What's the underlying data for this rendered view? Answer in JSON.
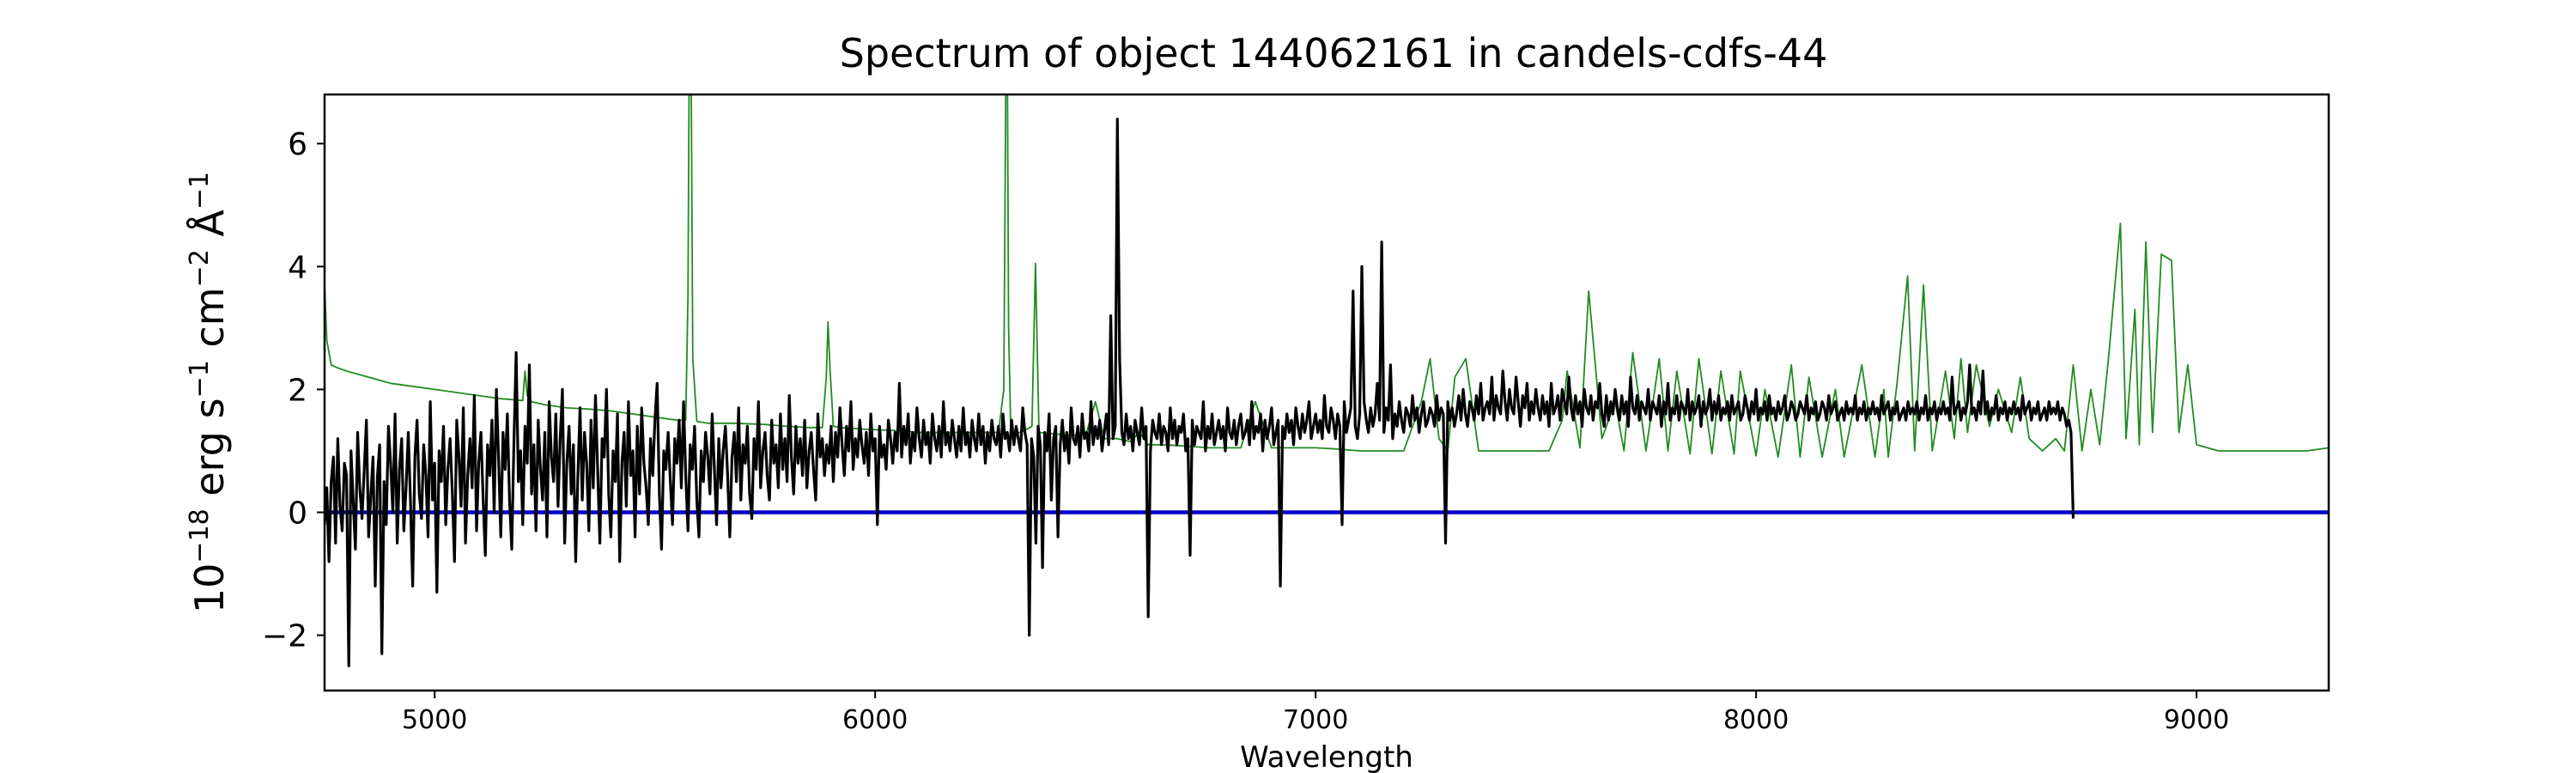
{
  "chart_data": {
    "type": "line",
    "title": "Spectrum of object 144062161 in candels-cdfs-44",
    "xlabel": "Wavelength",
    "ylabel": {
      "base": "10",
      "exp1": "−18",
      "erg": " erg s",
      "exp2": "−1",
      "cm": " cm",
      "exp3": "−2",
      "ang": " Å",
      "exp4": "−1"
    },
    "xlim": [
      4750,
      9300
    ],
    "ylim": [
      -2.9,
      6.8
    ],
    "xticks": [
      5000,
      6000,
      7000,
      8000,
      9000
    ],
    "xtick_labels": [
      "5000",
      "6000",
      "7000",
      "8000",
      "9000"
    ],
    "yticks": [
      -2,
      0,
      2,
      4,
      6
    ],
    "ytick_labels": [
      "−2",
      "0",
      "2",
      "4",
      "6"
    ],
    "grid": false,
    "legend": "none",
    "series": [
      {
        "role": "sky",
        "color": "#228B22",
        "x": [
          4750,
          4755,
          4765,
          4780,
          4800,
          4850,
          4900,
          4950,
          5000,
          5050,
          5100,
          5150,
          5200,
          5205,
          5210,
          5220,
          5250,
          5300,
          5350,
          5400,
          5450,
          5500,
          5550,
          5570,
          5575,
          5578,
          5582,
          5586,
          5595,
          5620,
          5680,
          5750,
          5800,
          5850,
          5880,
          5889,
          5893,
          5897,
          5905,
          5920,
          5980,
          6050,
          6100,
          6150,
          6200,
          6280,
          6292,
          6297,
          6300,
          6303,
          6308,
          6330,
          6356,
          6364,
          6372,
          6400,
          6450,
          6480,
          6500,
          6520,
          6550,
          6580,
          6600,
          6620,
          6650,
          6700,
          6760,
          6830,
          6863,
          6900,
          6950,
          7000,
          7050,
          7100,
          7150,
          7200,
          7240,
          7260,
          7280,
          7300,
          7316,
          7341,
          7370,
          7400,
          7450,
          7500,
          7530,
          7560,
          7571,
          7600,
          7620,
          7650,
          7680,
          7700,
          7720,
          7750,
          7780,
          7800,
          7820,
          7850,
          7870,
          7900,
          7920,
          7950,
          7964,
          8000,
          8020,
          8050,
          8080,
          8100,
          8120,
          8150,
          8180,
          8200,
          8240,
          8270,
          8290,
          8300,
          8320,
          8344,
          8360,
          8380,
          8400,
          8430,
          8450,
          8465,
          8480,
          8500,
          8530,
          8550,
          8580,
          8600,
          8620,
          8650,
          8680,
          8700,
          8720,
          8740,
          8760,
          8780,
          8800,
          8827,
          8840,
          8860,
          8870,
          8885,
          8900,
          8920,
          8943,
          8960,
          8980,
          9000,
          9050,
          9100,
          9150,
          9200,
          9250,
          9300
        ],
        "y": [
          3.7,
          2.8,
          2.4,
          2.35,
          2.3,
          2.2,
          2.1,
          2.05,
          2.0,
          1.95,
          1.9,
          1.85,
          1.82,
          2.3,
          1.9,
          1.8,
          1.75,
          1.7,
          1.68,
          1.65,
          1.6,
          1.55,
          1.5,
          1.5,
          3.5,
          7.5,
          7.5,
          2.5,
          1.48,
          1.45,
          1.45,
          1.43,
          1.4,
          1.38,
          1.38,
          2.2,
          3.1,
          2.4,
          1.4,
          1.38,
          1.35,
          1.33,
          1.3,
          1.3,
          1.3,
          1.3,
          2.0,
          7.5,
          7.5,
          3.0,
          1.3,
          1.3,
          1.4,
          4.05,
          1.3,
          1.28,
          1.25,
          1.3,
          1.8,
          1.2,
          1.2,
          1.15,
          1.3,
          1.1,
          1.1,
          1.08,
          1.05,
          1.05,
          1.8,
          1.05,
          1.05,
          1.05,
          1.03,
          1.0,
          1.0,
          1.0,
          1.8,
          2.5,
          1.2,
          1.0,
          2.2,
          2.5,
          1.0,
          1.0,
          1.0,
          1.0,
          1.0,
          1.5,
          2.3,
          1.05,
          3.6,
          1.2,
          1.8,
          1.0,
          2.6,
          1.0,
          2.5,
          1.0,
          2.3,
          0.95,
          2.5,
          0.95,
          2.3,
          0.95,
          2.3,
          0.92,
          2.0,
          0.9,
          2.4,
          0.9,
          2.2,
          0.9,
          2.0,
          0.9,
          2.4,
          0.9,
          2.0,
          0.9,
          2.1,
          3.85,
          1.0,
          3.7,
          1.0,
          2.3,
          1.2,
          2.5,
          1.3,
          2.4,
          1.4,
          2.0,
          1.3,
          2.2,
          1.2,
          1.0,
          1.2,
          1.0,
          2.4,
          1.0,
          2.0,
          1.1,
          2.5,
          4.7,
          1.2,
          3.3,
          1.1,
          4.4,
          1.3,
          4.2,
          4.1,
          1.3,
          2.4,
          1.1,
          1.0,
          1.0,
          1.0,
          1.0,
          1.0,
          1.05
        ]
      },
      {
        "role": "zero-line",
        "color": "#0000CC",
        "x": [
          4750,
          9300
        ],
        "y": [
          0,
          0
        ]
      },
      {
        "role": "object",
        "color": "#000000",
        "x_start": 4750,
        "x_step": 5,
        "y": [
          -0.2,
          0.4,
          -0.8,
          0.5,
          0.9,
          -0.5,
          1.2,
          0.1,
          -0.3,
          0.8,
          0.6,
          -2.5,
          1.0,
          0.2,
          -0.6,
          1.3,
          0.4,
          -0.1,
          0.7,
          1.5,
          -0.4,
          0.3,
          0.9,
          -1.2,
          0.6,
          1.1,
          -2.3,
          0.5,
          -0.2,
          1.4,
          0.8,
          0.0,
          1.6,
          -0.5,
          0.7,
          1.2,
          -0.3,
          0.4,
          1.3,
          0.2,
          -1.2,
          0.9,
          1.5,
          0.3,
          -0.1,
          1.1,
          0.6,
          -0.4,
          1.8,
          0.2,
          0.8,
          -1.3,
          1.0,
          0.5,
          1.4,
          -0.2,
          0.7,
          1.2,
          0.3,
          -0.8,
          1.5,
          0.9,
          0.1,
          1.7,
          -0.5,
          0.6,
          1.2,
          0.4,
          1.9,
          -0.3,
          0.8,
          1.3,
          0.2,
          -0.7,
          1.1,
          0.6,
          1.5,
          0.0,
          2.0,
          0.9,
          -0.4,
          1.3,
          0.7,
          1.6,
          0.2,
          -0.6,
          1.2,
          2.6,
          0.5,
          1.0,
          -0.2,
          1.4,
          0.8,
          2.4,
          0.3,
          1.1,
          -0.3,
          1.5,
          0.7,
          0.2,
          1.3,
          -0.4,
          1.8,
          0.9,
          0.5,
          1.6,
          0.1,
          1.2,
          2.0,
          -0.5,
          0.8,
          1.4,
          0.3,
          1.1,
          -0.8,
          0.6,
          1.7,
          0.2,
          1.3,
          0.8,
          -0.3,
          1.5,
          0.4,
          1.9,
          0.7,
          -0.5,
          1.2,
          0.9,
          2.0,
          0.3,
          -0.4,
          1.0,
          0.5,
          1.6,
          -0.8,
          0.8,
          1.3,
          0.1,
          1.8,
          0.6,
          1.0,
          -0.4,
          1.4,
          0.3,
          1.7,
          0.8,
          0.4,
          -0.2,
          1.2,
          0.6,
          1.5,
          2.1,
          0.3,
          -0.6,
          1.0,
          0.7,
          1.3,
          0.5,
          -0.2,
          1.2,
          0.8,
          1.5,
          0.4,
          1.8,
          0.6,
          -0.3,
          1.1,
          0.7,
          1.4,
          0.2,
          -0.4,
          1.0,
          0.5,
          1.3,
          0.9,
          0.3,
          1.6,
          0.7,
          -0.2,
          1.2,
          0.4,
          1.0,
          1.4,
          0.6,
          -0.4,
          0.9,
          1.3,
          0.5,
          1.7,
          0.2,
          1.1,
          0.8,
          1.4,
          0.3,
          -0.1,
          1.2,
          0.7,
          1.8,
          0.4,
          1.0,
          1.3,
          0.6,
          0.2,
          1.5,
          0.8,
          1.1,
          0.4,
          1.6,
          0.7,
          1.2,
          0.5,
          1.9,
          0.9,
          0.3,
          1.4,
          0.8,
          1.2,
          0.6,
          1.5,
          0.4,
          1.0,
          1.3,
          0.7,
          0.2,
          1.6,
          0.9,
          1.2,
          0.6,
          1.1,
          0.8,
          1.4,
          0.5,
          1.3,
          0.9,
          1.7,
          1.1,
          0.6,
          1.4,
          1.0,
          1.8,
          0.7,
          1.2,
          0.9,
          1.5,
          1.1,
          0.8,
          1.3,
          0.6,
          1.6,
          1.0,
          1.2,
          -0.2,
          1.4,
          0.9,
          1.1,
          0.7,
          1.5,
          1.2,
          0.8,
          1.3,
          1.0,
          2.1,
          0.9,
          1.4,
          1.1,
          1.6,
          0.8,
          1.3,
          1.0,
          1.7,
          1.2,
          0.9,
          1.5,
          1.1,
          1.3,
          0.8,
          1.6,
          1.2,
          1.0,
          1.4,
          0.9,
          1.8,
          1.1,
          1.3,
          1.0,
          1.5,
          1.2,
          0.9,
          1.4,
          1.0,
          1.7,
          1.1,
          1.3,
          0.9,
          1.5,
          1.2,
          1.0,
          1.6,
          1.1,
          1.4,
          0.8,
          1.3,
          1.0,
          1.5,
          1.2,
          1.1,
          1.4,
          0.9,
          1.6,
          1.2,
          1.3,
          1.0,
          1.5,
          1.1,
          1.4,
          1.2,
          1.0,
          1.7,
          1.3,
          1.1,
          -2.0,
          1.2,
          0.9,
          -0.5,
          1.4,
          1.1,
          -0.9,
          1.3,
          1.0,
          1.6,
          0.2,
          1.2,
          1.4,
          -0.4,
          1.1,
          1.5,
          1.0,
          1.3,
          0.8,
          1.7,
          1.2,
          1.1,
          1.4,
          0.9,
          1.6,
          1.2,
          1.3,
          1.0,
          1.8,
          1.1,
          1.4,
          1.2,
          1.5,
          1.0,
          1.3,
          1.6,
          1.1,
          3.2,
          1.2,
          1.4,
          6.4,
          2.5,
          1.3,
          1.1,
          1.6,
          1.2,
          1.4,
          1.0,
          1.5,
          1.3,
          1.1,
          1.7,
          1.2,
          1.4,
          -1.7,
          1.0,
          1.5,
          1.3,
          1.2,
          1.6,
          1.1,
          1.4,
          1.3,
          1.0,
          1.7,
          1.2,
          1.5,
          1.1,
          1.4,
          1.3,
          1.6,
          1.0,
          1.2,
          -0.7,
          1.5,
          1.1,
          1.4,
          1.3,
          1.2,
          1.8,
          1.0,
          1.4,
          1.2,
          1.6,
          1.1,
          1.3,
          1.5,
          1.2,
          1.4,
          1.0,
          1.7,
          1.3,
          1.2,
          1.5,
          1.1,
          1.4,
          1.6,
          1.2,
          1.3,
          1.5,
          1.1,
          1.8,
          1.2,
          1.4,
          1.3,
          1.6,
          1.0,
          1.5,
          1.2,
          1.4,
          1.7,
          1.1,
          1.3,
          1.5,
          -1.2,
          1.4,
          1.2,
          1.6,
          1.3,
          1.5,
          1.1,
          1.7,
          1.4,
          1.2,
          1.6,
          1.3,
          1.5,
          1.8,
          1.2,
          1.4,
          1.6,
          1.3,
          1.5,
          1.2,
          1.9,
          1.4,
          1.3,
          1.7,
          1.5,
          1.2,
          1.6,
          1.4,
          -0.2,
          1.8,
          1.3,
          1.5,
          1.7,
          3.6,
          1.4,
          1.2,
          1.6,
          4.0,
          1.8,
          1.5,
          1.3,
          1.7,
          1.4,
          1.6,
          2.1,
          1.5,
          4.4,
          1.3,
          1.7,
          1.5,
          2.4,
          1.2,
          1.6,
          1.4,
          1.8,
          1.5,
          1.3,
          1.7,
          1.6,
          1.4,
          1.9,
          1.5,
          1.7,
          1.3,
          1.6,
          1.8,
          1.4,
          1.5,
          1.7,
          1.6,
          1.4,
          1.9,
          1.5,
          1.7,
          1.6,
          -0.5,
          1.8,
          1.5,
          1.7,
          1.4,
          1.6,
          1.9,
          1.5,
          2.0,
          1.6,
          1.4,
          1.8,
          1.7,
          1.5,
          1.9,
          1.6,
          2.1,
          1.5,
          1.7,
          1.8,
          1.6,
          2.2,
          1.5,
          1.9,
          1.7,
          1.6,
          2.3,
          1.8,
          1.5,
          2.0,
          1.7,
          1.6,
          2.2,
          1.8,
          1.4,
          1.9,
          1.7,
          2.1,
          1.5,
          1.8,
          1.6,
          2.0,
          1.7,
          1.5,
          1.9,
          1.6,
          1.8,
          1.4,
          2.1,
          1.6,
          1.7,
          1.9,
          1.5,
          2.0,
          1.8,
          1.6,
          2.2,
          1.7,
          1.5,
          1.9,
          1.6,
          1.8,
          1.4,
          2.0,
          1.7,
          1.6,
          1.9,
          1.5,
          1.8,
          1.7,
          2.1,
          1.6,
          1.4,
          1.9,
          1.5,
          1.8,
          1.6,
          2.0,
          1.7,
          1.5,
          1.9,
          1.6,
          1.8,
          1.4,
          2.2,
          1.7,
          1.6,
          1.9,
          1.5,
          1.8,
          1.7,
          1.6,
          2.0,
          1.5,
          1.8,
          1.7,
          1.6,
          1.9,
          1.4,
          1.8,
          1.6,
          2.1,
          1.5,
          1.7,
          1.6,
          1.9,
          1.5,
          1.8,
          1.7,
          1.6,
          2.0,
          1.5,
          1.8,
          1.6,
          1.7,
          1.9,
          1.4,
          1.8,
          1.6,
          1.7,
          2.0,
          1.5,
          1.8,
          1.6,
          1.9,
          1.5,
          1.7,
          1.6,
          1.8,
          1.5,
          1.9,
          1.6,
          1.7,
          1.8,
          1.5,
          1.6,
          1.9,
          1.7,
          1.5,
          1.8,
          1.6,
          2.0,
          1.5,
          1.7,
          1.6,
          1.8,
          1.5,
          1.9,
          1.6,
          1.7,
          1.5,
          1.8,
          1.6,
          1.7,
          1.9,
          1.5,
          1.6,
          1.8,
          1.7,
          1.5,
          1.6,
          1.8,
          1.7,
          1.6,
          1.9,
          1.5,
          1.7,
          1.6,
          1.8,
          1.5,
          1.6,
          1.8,
          1.7,
          1.5,
          1.9,
          1.6,
          1.7,
          1.8,
          1.5,
          1.6,
          1.7,
          1.5,
          1.8,
          1.6,
          1.7,
          1.6,
          1.9,
          1.5,
          1.7,
          1.6,
          1.8,
          1.5,
          1.7,
          1.6,
          1.8,
          1.6,
          1.7,
          1.5,
          1.9,
          1.6,
          1.7,
          1.8,
          1.5,
          1.7,
          1.6,
          1.8,
          1.5,
          1.6,
          1.7,
          1.5,
          1.8,
          1.6,
          1.7,
          1.6,
          1.8,
          1.5,
          1.7,
          1.6,
          1.9,
          1.5,
          1.7,
          1.6,
          1.8,
          1.5,
          1.7,
          1.6,
          1.8,
          1.6,
          1.7,
          1.5,
          2.2,
          1.6,
          1.7,
          1.8,
          1.5,
          1.7,
          1.6,
          1.8,
          2.4,
          1.6,
          1.7,
          1.5,
          1.8,
          1.6,
          2.3,
          1.6,
          1.8,
          1.5,
          1.7,
          1.6,
          1.9,
          1.5,
          1.7,
          1.6,
          1.8,
          1.5,
          1.7,
          1.6,
          1.8,
          1.6,
          1.7,
          1.5,
          1.9,
          1.6,
          1.7,
          1.8,
          1.5,
          1.7,
          1.6,
          1.8,
          1.5,
          1.6,
          1.7,
          1.5,
          1.8,
          1.6,
          1.7,
          1.6,
          1.8,
          1.5,
          1.7,
          1.6,
          1.4,
          1.5,
          1.3,
          -0.1
        ]
      }
    ]
  }
}
